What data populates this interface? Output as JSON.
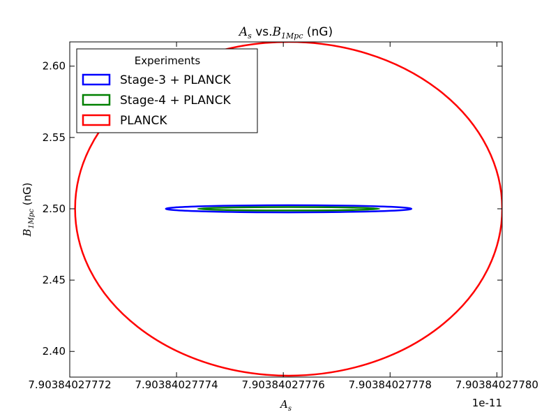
{
  "chart_data": {
    "type": "line",
    "title_parts": {
      "var_a": "A",
      "var_a_sub": "s",
      "middle": " vs.",
      "var_b": "B",
      "var_b_sub": "1Mpc",
      "unit": " (nG)"
    },
    "xlabel_parts": {
      "var": "A",
      "sub": "s"
    },
    "ylabel_parts": {
      "var": "B",
      "sub": "1Mpc",
      "unit": " (nG)"
    },
    "x_offset_label": "1e-11",
    "xlim": [
      7.90384027772,
      7.903840277801
    ],
    "ylim": [
      2.382,
      2.617
    ],
    "xticks": [
      7.90384027772,
      7.90384027774,
      7.90384027776,
      7.90384027778,
      7.9038402778
    ],
    "xtick_labels": [
      "7.90384027772",
      "7.90384027774",
      "7.90384027776",
      "7.90384027778",
      "7.90384027780"
    ],
    "yticks": [
      2.4,
      2.45,
      2.5,
      2.55,
      2.6
    ],
    "ytick_labels": [
      "2.40",
      "2.45",
      "2.50",
      "2.55",
      "2.60"
    ],
    "legend": {
      "title": "Experiments",
      "placement": "upper-left"
    },
    "series": [
      {
        "name": "Stage-3 + PLANCK",
        "color": "#0000ff",
        "shape": "ellipse",
        "center": [
          7.903840277761,
          2.5
        ],
        "half_widths": [
          2.3e-11,
          0.0025
        ]
      },
      {
        "name": "Stage-4 + PLANCK",
        "color": "#008000",
        "shape": "ellipse",
        "center": [
          7.903840277761,
          2.5
        ],
        "half_widths": [
          1.7e-11,
          0.0012
        ]
      },
      {
        "name": "PLANCK",
        "color": "#ff0000",
        "shape": "ellipse",
        "center": [
          7.903840277761,
          2.5
        ],
        "half_widths": [
          4e-11,
          0.117
        ]
      }
    ]
  }
}
